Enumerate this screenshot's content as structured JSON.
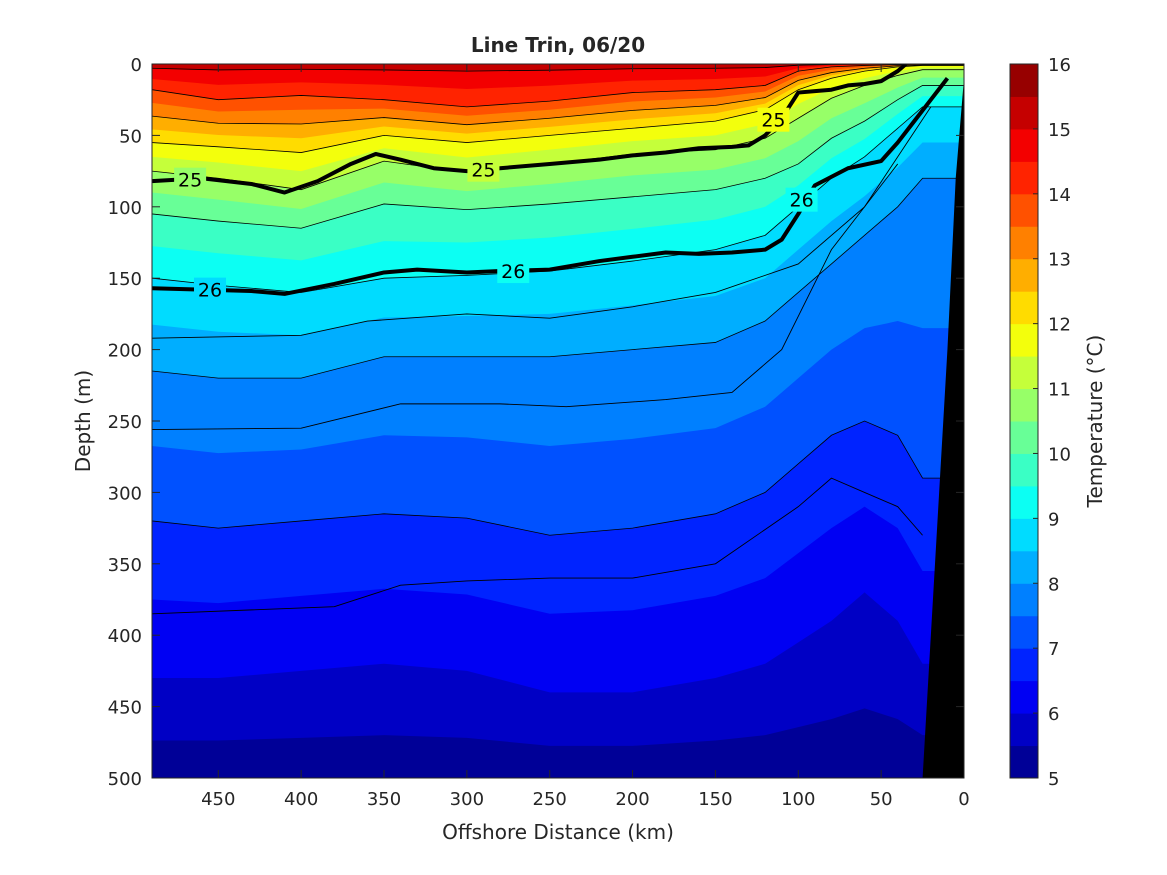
{
  "chart_data": {
    "type": "heatmap",
    "title": "Line Trin, 06/20",
    "xlabel": "Offshore Distance (km)",
    "ylabel": "Depth (m)",
    "colorbar_label": "Temperature (°C)",
    "xlim": [
      490,
      0
    ],
    "ylim": [
      0,
      500
    ],
    "x_reversed": true,
    "y_reversed": true,
    "xticks": [
      450,
      400,
      350,
      300,
      250,
      200,
      150,
      100,
      50,
      0
    ],
    "yticks": [
      0,
      50,
      100,
      150,
      200,
      250,
      300,
      350,
      400,
      450,
      500
    ],
    "colorbar_range": [
      5,
      16
    ],
    "colorbar_ticks": [
      5,
      6,
      7,
      8,
      9,
      10,
      11,
      12,
      13,
      14,
      15,
      16
    ],
    "colormap": "jet",
    "fill_step": 0.5,
    "shelf_color": "#000000",
    "x": [
      490,
      450,
      400,
      350,
      300,
      250,
      200,
      150,
      120,
      100,
      80,
      60,
      40,
      25
    ],
    "temperature_depth_profile": {
      "temperatures": [
        15.2,
        14,
        12,
        11,
        10,
        9,
        8,
        7,
        6,
        5.2
      ],
      "depths": [
        [
          0,
          18,
          55,
          75,
          105,
          150,
          215,
          320,
          430,
          500
        ],
        [
          0,
          25,
          58,
          80,
          110,
          155,
          220,
          325,
          430,
          500
        ],
        [
          0,
          22,
          62,
          88,
          115,
          160,
          220,
          320,
          425,
          500
        ],
        [
          0,
          25,
          50,
          68,
          98,
          150,
          205,
          315,
          420,
          500
        ],
        [
          0,
          30,
          55,
          76,
          102,
          148,
          205,
          318,
          425,
          500
        ],
        [
          0,
          26,
          50,
          70,
          98,
          145,
          205,
          330,
          440,
          500
        ],
        [
          0,
          20,
          45,
          63,
          93,
          138,
          200,
          325,
          440,
          500
        ],
        [
          0,
          18,
          40,
          60,
          88,
          130,
          195,
          315,
          430,
          500
        ],
        [
          0,
          15,
          32,
          52,
          80,
          120,
          180,
          300,
          420,
          500
        ],
        [
          0,
          5,
          18,
          38,
          70,
          100,
          160,
          280,
          405,
          500
        ],
        [
          0,
          2,
          10,
          24,
          52,
          80,
          140,
          260,
          390,
          500
        ],
        [
          0,
          1,
          5,
          15,
          40,
          65,
          120,
          250,
          370,
          500
        ],
        [
          0,
          0.5,
          2,
          8,
          25,
          45,
          100,
          260,
          390,
          500
        ],
        [
          0,
          0.2,
          1,
          4,
          15,
          30,
          80,
          290,
          420,
          500
        ]
      ]
    },
    "shelf_edge": {
      "x": [
        0,
        5,
        10,
        15,
        20,
        25,
        30
      ],
      "depth": [
        10,
        80,
        200,
        300,
        400,
        500,
        500
      ]
    },
    "labeled_contours": [
      {
        "label": "25",
        "x": [
          490,
          460,
          430,
          410,
          390,
          370,
          355,
          340,
          320,
          300,
          280,
          250,
          220,
          200,
          180,
          160,
          140,
          130,
          120,
          110,
          100,
          90,
          80,
          70,
          60,
          50,
          40,
          35
        ],
        "depth": [
          82,
          80,
          84,
          90,
          82,
          70,
          63,
          67,
          73,
          75,
          73,
          70,
          67,
          64,
          62,
          59,
          58,
          57,
          50,
          38,
          20,
          19,
          18,
          15,
          14,
          12,
          5,
          0
        ],
        "label_positions": [
          [
            467,
            81
          ],
          [
            290,
            74
          ],
          [
            115,
            39
          ]
        ]
      },
      {
        "label": "26",
        "x": [
          490,
          460,
          430,
          410,
          380,
          350,
          330,
          300,
          280,
          250,
          220,
          200,
          180,
          160,
          140,
          120,
          110,
          100,
          90,
          70,
          50,
          40,
          30,
          20,
          10
        ],
        "depth": [
          157,
          158,
          159,
          161,
          154,
          146,
          144,
          146,
          145,
          144,
          138,
          135,
          132,
          133,
          132,
          130,
          123,
          105,
          85,
          73,
          68,
          55,
          40,
          25,
          10
        ],
        "label_positions": [
          [
            455,
            158
          ],
          [
            272,
            145
          ],
          [
            98,
            95
          ]
        ]
      }
    ],
    "thin_contours": [
      {
        "x": [
          490,
          400,
          360,
          300,
          250,
          200,
          150,
          100,
          60,
          20
        ],
        "depth": [
          192,
          190,
          180,
          175,
          178,
          170,
          160,
          140,
          100,
          30
        ]
      },
      {
        "x": [
          490,
          400,
          340,
          280,
          240,
          180,
          140,
          110,
          80,
          40
        ],
        "depth": [
          256,
          255,
          238,
          238,
          240,
          235,
          230,
          200,
          130,
          70
        ]
      },
      {
        "x": [
          490,
          380,
          340,
          300,
          250,
          200,
          150,
          100,
          80,
          60,
          40,
          25
        ],
        "depth": [
          385,
          380,
          365,
          362,
          360,
          360,
          350,
          310,
          290,
          300,
          310,
          330
        ]
      }
    ]
  }
}
